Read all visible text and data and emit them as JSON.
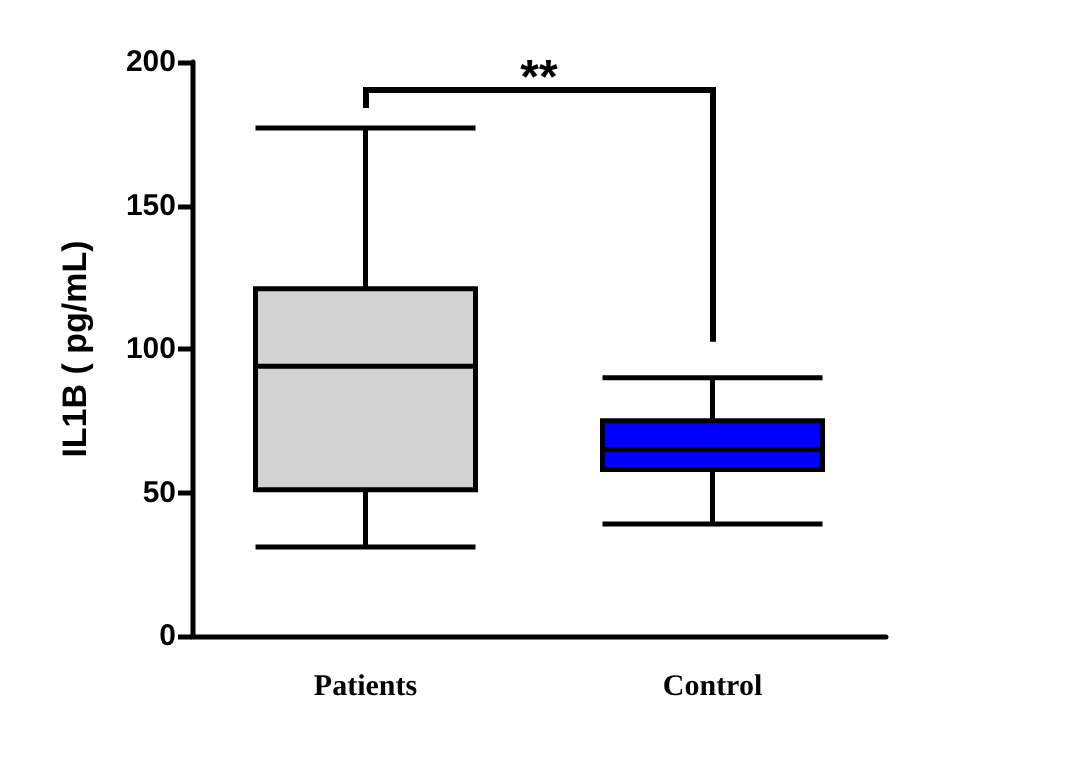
{
  "chart_data": {
    "type": "box",
    "ylabel": "IL1B ( pg/mL)",
    "categories": [
      "Patients",
      "Control"
    ],
    "boxes": [
      {
        "low": 31,
        "q1": 51,
        "median": 94,
        "q3": 121,
        "high": 177
      },
      {
        "low": 39,
        "q1": 58,
        "median": 65,
        "q3": 75,
        "high": 90
      }
    ],
    "colors": [
      "#d3d3d3",
      "#0000ff"
    ],
    "ylim": [
      0,
      200
    ],
    "yticks": [
      0,
      50,
      100,
      150,
      200
    ],
    "grid": false,
    "annotations": [
      "**"
    ]
  }
}
